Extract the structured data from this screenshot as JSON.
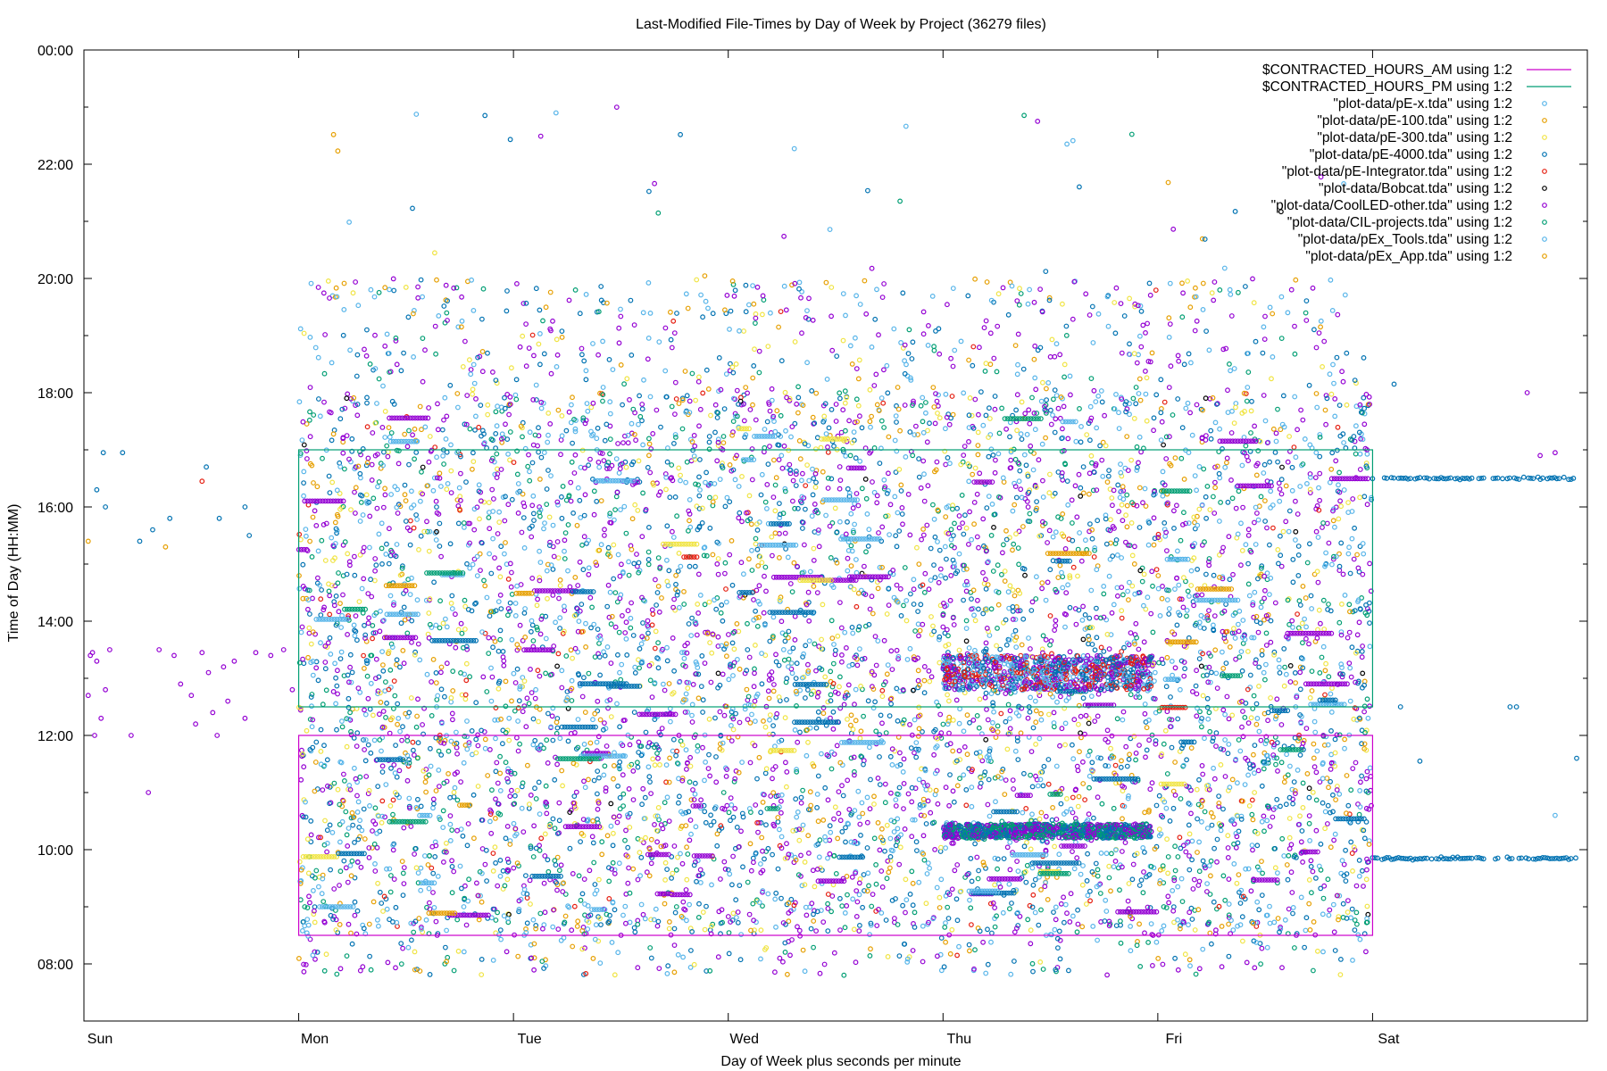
{
  "chart_data": {
    "type": "scatter",
    "title": "Last-Modified File-Times by Day of Week by Project (36279 files)",
    "xlabel": "Day of Week plus seconds per minute",
    "ylabel": "Time of Day (HH:MM)",
    "xlim": [
      0,
      7
    ],
    "ylim_hours": [
      7,
      24
    ],
    "x_ticks": [
      {
        "label": "Sun",
        "value": 0
      },
      {
        "label": "Mon",
        "value": 1
      },
      {
        "label": "Tue",
        "value": 2
      },
      {
        "label": "Wed",
        "value": 3
      },
      {
        "label": "Thu",
        "value": 4
      },
      {
        "label": "Fri",
        "value": 5
      },
      {
        "label": "Sat",
        "value": 6
      }
    ],
    "y_ticks": [
      {
        "label": "00:00",
        "value": 24
      },
      {
        "label": "22:00",
        "value": 22
      },
      {
        "label": "20:00",
        "value": 20
      },
      {
        "label": "18:00",
        "value": 18
      },
      {
        "label": "16:00",
        "value": 16
      },
      {
        "label": "14:00",
        "value": 14
      },
      {
        "label": "12:00",
        "value": 12
      },
      {
        "label": "10:00",
        "value": 10
      },
      {
        "label": "08:00",
        "value": 8
      }
    ],
    "legend_position": "top-right",
    "contracted_hours": {
      "am": {
        "name": "$CONTRACTED_HOURS_AM using 1:2",
        "color": "#cc00cc",
        "x": [
          1,
          6
        ],
        "y": [
          8.5,
          12.0
        ]
      },
      "pm": {
        "name": "$CONTRACTED_HOURS_PM using 1:2",
        "color": "#009e73",
        "x": [
          1,
          6
        ],
        "y": [
          12.5,
          17.0
        ]
      }
    },
    "series": [
      {
        "name": "\"plot-data/pE-x.tda\" using 1:2",
        "color": "#56b4e9",
        "weight": 7
      },
      {
        "name": "\"plot-data/pE-100.tda\" using 1:2",
        "color": "#e69f00",
        "weight": 3
      },
      {
        "name": "\"plot-data/pE-300.tda\" using 1:2",
        "color": "#f0e442",
        "weight": 4
      },
      {
        "name": "\"plot-data/pE-4000.tda\" using 1:2",
        "color": "#0072b2",
        "weight": 9
      },
      {
        "name": "\"plot-data/pE-Integrator.tda\" using 1:2",
        "color": "#e51e10",
        "weight": 1
      },
      {
        "name": "\"plot-data/Bobcat.tda\" using 1:2",
        "color": "#000000",
        "weight": 0.2
      },
      {
        "name": "\"plot-data/CoolLED-other.tda\" using 1:2",
        "color": "#9400d3",
        "weight": 12
      },
      {
        "name": "\"plot-data/CIL-projects.tda\" using 1:2",
        "color": "#009e73",
        "weight": 5
      },
      {
        "name": "\"plot-data/pEx_Tools.tda\" using 1:2",
        "color": "#56b4e9",
        "weight": 2
      },
      {
        "name": "\"plot-data/pEx_App.tda\" using 1:2",
        "color": "#e69f00",
        "weight": 1
      }
    ],
    "density_description": {
      "weekday_points_per_day": 1400,
      "weekday_hours_range": [
        7.8,
        23.0
      ],
      "weekday_peak_hours": [
        8.5,
        18.0
      ],
      "clusters": [
        {
          "day": "Thu",
          "x": [
            4.0,
            5.0
          ],
          "y": [
            12.8,
            13.4
          ],
          "series_colors": [
            "#9400d3",
            "#e51e10",
            "#56b4e9",
            "#0072b2"
          ]
        },
        {
          "day": "Thu",
          "x": [
            4.0,
            5.0
          ],
          "y": [
            10.2,
            10.45
          ],
          "series_colors": [
            "#9400d3",
            "#0072b2",
            "#009e73"
          ]
        }
      ],
      "sunday_points": [
        {
          "x": 0.02,
          "y": 12.7,
          "s": 6
        },
        {
          "x": 0.03,
          "y": 13.4,
          "s": 6
        },
        {
          "x": 0.04,
          "y": 13.45,
          "s": 6
        },
        {
          "x": 0.05,
          "y": 12.0,
          "s": 6
        },
        {
          "x": 0.06,
          "y": 13.3,
          "s": 6
        },
        {
          "x": 0.08,
          "y": 12.3,
          "s": 6
        },
        {
          "x": 0.1,
          "y": 12.8,
          "s": 6
        },
        {
          "x": 0.12,
          "y": 13.5,
          "s": 6
        },
        {
          "x": 0.06,
          "y": 16.3,
          "s": 3
        },
        {
          "x": 0.09,
          "y": 16.95,
          "s": 3
        },
        {
          "x": 0.18,
          "y": 16.95,
          "s": 3
        },
        {
          "x": 0.1,
          "y": 16.0,
          "s": 3
        },
        {
          "x": 0.26,
          "y": 15.4,
          "s": 3
        },
        {
          "x": 0.32,
          "y": 15.6,
          "s": 3
        },
        {
          "x": 0.4,
          "y": 15.8,
          "s": 3
        },
        {
          "x": 0.22,
          "y": 12.0,
          "s": 6
        },
        {
          "x": 0.3,
          "y": 11.0,
          "s": 6
        },
        {
          "x": 0.35,
          "y": 13.5,
          "s": 6
        },
        {
          "x": 0.42,
          "y": 13.4,
          "s": 6
        },
        {
          "x": 0.45,
          "y": 12.9,
          "s": 6
        },
        {
          "x": 0.5,
          "y": 12.7,
          "s": 6
        },
        {
          "x": 0.52,
          "y": 12.2,
          "s": 6
        },
        {
          "x": 0.55,
          "y": 13.45,
          "s": 6
        },
        {
          "x": 0.58,
          "y": 13.1,
          "s": 6
        },
        {
          "x": 0.6,
          "y": 12.4,
          "s": 6
        },
        {
          "x": 0.62,
          "y": 12.0,
          "s": 6
        },
        {
          "x": 0.65,
          "y": 13.2,
          "s": 6
        },
        {
          "x": 0.67,
          "y": 12.6,
          "s": 6
        },
        {
          "x": 0.7,
          "y": 13.3,
          "s": 6
        },
        {
          "x": 0.75,
          "y": 12.3,
          "s": 6
        },
        {
          "x": 0.8,
          "y": 13.45,
          "s": 6
        },
        {
          "x": 0.87,
          "y": 13.4,
          "s": 6
        },
        {
          "x": 0.93,
          "y": 13.5,
          "s": 6
        },
        {
          "x": 0.97,
          "y": 12.8,
          "s": 6
        },
        {
          "x": 0.55,
          "y": 16.45,
          "s": 4
        },
        {
          "x": 0.57,
          "y": 16.7,
          "s": 3
        },
        {
          "x": 0.63,
          "y": 15.8,
          "s": 3
        },
        {
          "x": 0.75,
          "y": 16.0,
          "s": 3
        },
        {
          "x": 0.77,
          "y": 15.5,
          "s": 3
        },
        {
          "x": 0.02,
          "y": 15.4,
          "s": 1
        },
        {
          "x": 0.38,
          "y": 15.3,
          "s": 1
        }
      ],
      "saturday_lines": [
        {
          "x": [
            6.0,
            6.95
          ],
          "y": 16.5,
          "series": 3
        },
        {
          "x": [
            6.0,
            6.95
          ],
          "y": 9.85,
          "series": 3
        }
      ],
      "saturday_points": [
        {
          "x": 6.1,
          "y": 18.15,
          "s": 3
        },
        {
          "x": 6.72,
          "y": 18.0,
          "s": 6
        },
        {
          "x": 6.85,
          "y": 16.95,
          "s": 6
        },
        {
          "x": 6.78,
          "y": 16.9,
          "s": 6
        },
        {
          "x": 6.13,
          "y": 12.5,
          "s": 3
        },
        {
          "x": 6.22,
          "y": 11.55,
          "s": 3
        },
        {
          "x": 6.64,
          "y": 12.5,
          "s": 3
        },
        {
          "x": 6.67,
          "y": 12.5,
          "s": 3
        },
        {
          "x": 6.95,
          "y": 11.6,
          "s": 3
        },
        {
          "x": 6.85,
          "y": 10.6,
          "s": 0
        }
      ]
    }
  }
}
